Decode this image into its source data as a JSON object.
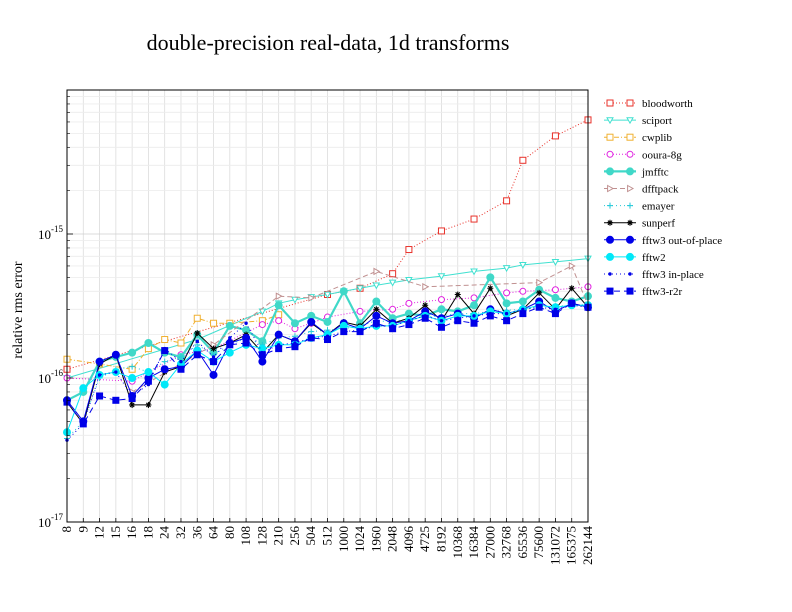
{
  "chart_data": {
    "type": "line",
    "title": "double-precision real-data, 1d transforms",
    "xlabel": "",
    "ylabel": "relative rms error",
    "yscale": "log",
    "ylim": [
      1e-17,
      1e-14
    ],
    "y_ticks": [
      {
        "value": 1e-17,
        "base": "10",
        "exp": "-17"
      },
      {
        "value": 1e-16,
        "base": "10",
        "exp": "-16"
      },
      {
        "value": 1e-15,
        "base": "10",
        "exp": "-15"
      }
    ],
    "grid": true,
    "legend_position": "right",
    "categories": [
      "8",
      "9",
      "12",
      "15",
      "16",
      "18",
      "24",
      "32",
      "36",
      "64",
      "80",
      "108",
      "128",
      "210",
      "256",
      "504",
      "512",
      "1000",
      "1024",
      "1960",
      "2048",
      "4096",
      "4725",
      "8192",
      "10368",
      "16384",
      "27000",
      "32768",
      "65536",
      "75600",
      "131072",
      "165375",
      "262144"
    ],
    "series": [
      {
        "name": "bloodworth",
        "color": "#e8312a",
        "dash": "1,2",
        "marker": "square-open",
        "values": [
          1.15e-16,
          null,
          null,
          null,
          null,
          null,
          null,
          null,
          null,
          null,
          null,
          null,
          null,
          null,
          null,
          null,
          3.8e-16,
          null,
          4.2e-16,
          null,
          5.3e-16,
          7.8e-16,
          null,
          1.05e-15,
          null,
          1.27e-15,
          null,
          1.7e-15,
          3.25e-15,
          null,
          4.8e-15,
          null,
          6.2e-15
        ]
      },
      {
        "name": "sciport",
        "color": "#40e0d0",
        "dash": "",
        "marker": "tri-down-open",
        "values": [
          1e-16,
          null,
          null,
          null,
          null,
          null,
          null,
          null,
          1.85e-16,
          null,
          null,
          null,
          2.9e-16,
          3.3e-16,
          3.5e-16,
          3.65e-16,
          3.8e-16,
          4e-16,
          4.2e-16,
          4.4e-16,
          4.6e-16,
          4.8e-16,
          null,
          5.1e-16,
          null,
          5.5e-16,
          null,
          5.8e-16,
          6.1e-16,
          null,
          6.4e-16,
          null,
          6.75e-16
        ]
      },
      {
        "name": "cwplib",
        "color": "#f0b030",
        "dash": "5,2,1,2",
        "marker": "square-open",
        "values": [
          1.35e-16,
          null,
          1.25e-16,
          null,
          1.15e-16,
          1.6e-16,
          1.85e-16,
          1.75e-16,
          2.6e-16,
          2.4e-16,
          2.4e-16,
          null,
          2.5e-16,
          2.75e-16,
          null,
          null,
          null,
          null,
          null,
          null,
          null,
          null,
          null,
          null,
          null,
          null,
          null,
          null,
          null,
          null,
          null,
          null,
          null
        ]
      },
      {
        "name": "ooura-8g",
        "color": "#e020e0",
        "dash": "1,2",
        "marker": "circle-open",
        "values": [
          1e-16,
          null,
          null,
          null,
          9.5e-17,
          null,
          null,
          1.45e-16,
          null,
          1.6e-16,
          null,
          null,
          2.35e-16,
          2.5e-16,
          2.2e-16,
          2.4e-16,
          2.65e-16,
          null,
          2.9e-16,
          null,
          3e-16,
          3.3e-16,
          null,
          3.5e-16,
          null,
          3.6e-16,
          null,
          3.9e-16,
          4e-16,
          null,
          4.1e-16,
          null,
          4.3e-16
        ]
      },
      {
        "name": "jmfftc",
        "color": "#40d8c8",
        "dash": "",
        "marker": "circle-filled",
        "width": 2.2,
        "values": [
          7e-17,
          8e-17,
          1.3e-16,
          1.4e-16,
          1.5e-16,
          1.75e-16,
          1.5e-16,
          1.4e-16,
          2e-16,
          1.5e-16,
          2.3e-16,
          2.15e-16,
          1.8e-16,
          3.2e-16,
          2.4e-16,
          2.7e-16,
          2.45e-16,
          4e-16,
          2.4e-16,
          3.4e-16,
          2.6e-16,
          2.8e-16,
          2.7e-16,
          3e-16,
          2.9e-16,
          3.2e-16,
          5e-16,
          3.3e-16,
          3.4e-16,
          4.1e-16,
          3.6e-16,
          3.4e-16,
          3.7e-16
        ]
      },
      {
        "name": "dfftpack",
        "color": "#c09090",
        "dash": "5,3",
        "marker": "tri-right-open",
        "values": [
          null,
          null,
          null,
          null,
          8e-17,
          null,
          null,
          null,
          null,
          1.7e-16,
          null,
          null,
          null,
          3.7e-16,
          null,
          3.6e-16,
          null,
          null,
          null,
          5.5e-16,
          null,
          null,
          4.3e-16,
          null,
          null,
          null,
          null,
          null,
          null,
          4.6e-16,
          null,
          6e-16,
          3.2e-16
        ]
      },
      {
        "name": "emayer",
        "color": "#20c8d8",
        "dash": "1,3",
        "marker": "plus",
        "values": [
          3.8e-17,
          5e-17,
          1e-16,
          1.15e-16,
          1.2e-16,
          1.1e-16,
          1.3e-16,
          1.4e-16,
          1.7e-16,
          1.45e-16,
          1.7e-16,
          1.9e-16,
          1.7e-16,
          1.9e-16,
          1.95e-16,
          2.1e-16,
          2.15e-16,
          2.2e-16,
          2.3e-16,
          2.5e-16,
          2.45e-16,
          2.6e-16,
          2.65e-16,
          2.7e-16,
          2.8e-16,
          2.8e-16,
          2.9e-16,
          2.95e-16,
          3e-16,
          3.1e-16,
          3.15e-16,
          3.2e-16,
          3.25e-16
        ]
      },
      {
        "name": "sunperf",
        "color": "#000000",
        "dash": "",
        "marker": "star",
        "values": [
          6.8e-17,
          4.8e-17,
          1.25e-16,
          1.45e-16,
          6.5e-17,
          6.5e-17,
          1.1e-16,
          1.2e-16,
          2.05e-16,
          1.6e-16,
          1.75e-16,
          2e-16,
          1.5e-16,
          2e-16,
          1.8e-16,
          2.4e-16,
          2e-16,
          2.45e-16,
          2.3e-16,
          3e-16,
          2.4e-16,
          2.6e-16,
          3.2e-16,
          2.5e-16,
          3.8e-16,
          2.8e-16,
          4.2e-16,
          2.7e-16,
          3e-16,
          3.9e-16,
          3e-16,
          4.2e-16,
          3.1e-16
        ]
      },
      {
        "name": "fftw3 out-of-place",
        "color": "#0000e8",
        "dash": "",
        "marker": "circle-filled",
        "values": [
          7e-17,
          5e-17,
          1.3e-16,
          1.45e-16,
          7.5e-17,
          1e-16,
          1.15e-16,
          1.2e-16,
          1.55e-16,
          1.05e-16,
          1.75e-16,
          1.9e-16,
          1.3e-16,
          2e-16,
          1.8e-16,
          2.45e-16,
          2e-16,
          2.4e-16,
          2.2e-16,
          2.7e-16,
          2.4e-16,
          2.5e-16,
          2.9e-16,
          2.6e-16,
          2.8e-16,
          2.6e-16,
          3e-16,
          2.8e-16,
          3e-16,
          3.4e-16,
          2.9e-16,
          3.3e-16,
          3.1e-16
        ]
      },
      {
        "name": "fftw2",
        "color": "#00e8f8",
        "dash": "",
        "marker": "circle-filled",
        "values": [
          4.2e-17,
          8.5e-17,
          1.05e-16,
          1.1e-16,
          1e-16,
          1.1e-16,
          9e-17,
          1.25e-16,
          1.55e-16,
          1.3e-16,
          1.5e-16,
          1.7e-16,
          1.6e-16,
          1.7e-16,
          1.7e-16,
          1.9e-16,
          2e-16,
          2.3e-16,
          2.2e-16,
          2.3e-16,
          2.3e-16,
          2.5e-16,
          2.7e-16,
          2.5e-16,
          2.7e-16,
          2.7e-16,
          2.9e-16,
          2.8e-16,
          3e-16,
          3.2e-16,
          3.1e-16,
          3.2e-16,
          3.2e-16
        ]
      },
      {
        "name": "fftw3 in-place",
        "color": "#0000e8",
        "dash": "1,3",
        "marker": "dot",
        "values": [
          3.7e-17,
          4.8e-17,
          1.05e-16,
          1.1e-16,
          7.5e-17,
          9e-17,
          1.6e-16,
          1.3e-16,
          1.8e-16,
          1.4e-16,
          1.9e-16,
          2.4e-16,
          1.5e-16,
          1.7e-16,
          1.75e-16,
          1.9e-16,
          1.95e-16,
          2.1e-16,
          2.15e-16,
          2.3e-16,
          2.3e-16,
          2.5e-16,
          2.7e-16,
          2.5e-16,
          2.6e-16,
          2.7e-16,
          2.8e-16,
          2.8e-16,
          3e-16,
          3.1e-16,
          3e-16,
          3.2e-16,
          3.1e-16
        ]
      },
      {
        "name": "fftw3-r2r",
        "color": "#0000e8",
        "dash": "6,4",
        "marker": "square-filled",
        "values": [
          6.8e-17,
          4.8e-17,
          7.5e-17,
          7e-17,
          7.2e-17,
          9.5e-17,
          1.55e-16,
          1.15e-16,
          1.45e-16,
          1.3e-16,
          1.7e-16,
          1.75e-16,
          1.45e-16,
          1.6e-16,
          1.65e-16,
          1.9e-16,
          1.85e-16,
          2.1e-16,
          2.1e-16,
          2.4e-16,
          2.2e-16,
          2.35e-16,
          2.6e-16,
          2.25e-16,
          2.5e-16,
          2.4e-16,
          2.7e-16,
          2.5e-16,
          2.8e-16,
          3.1e-16,
          2.8e-16,
          3.3e-16,
          3.1e-16
        ]
      }
    ]
  }
}
